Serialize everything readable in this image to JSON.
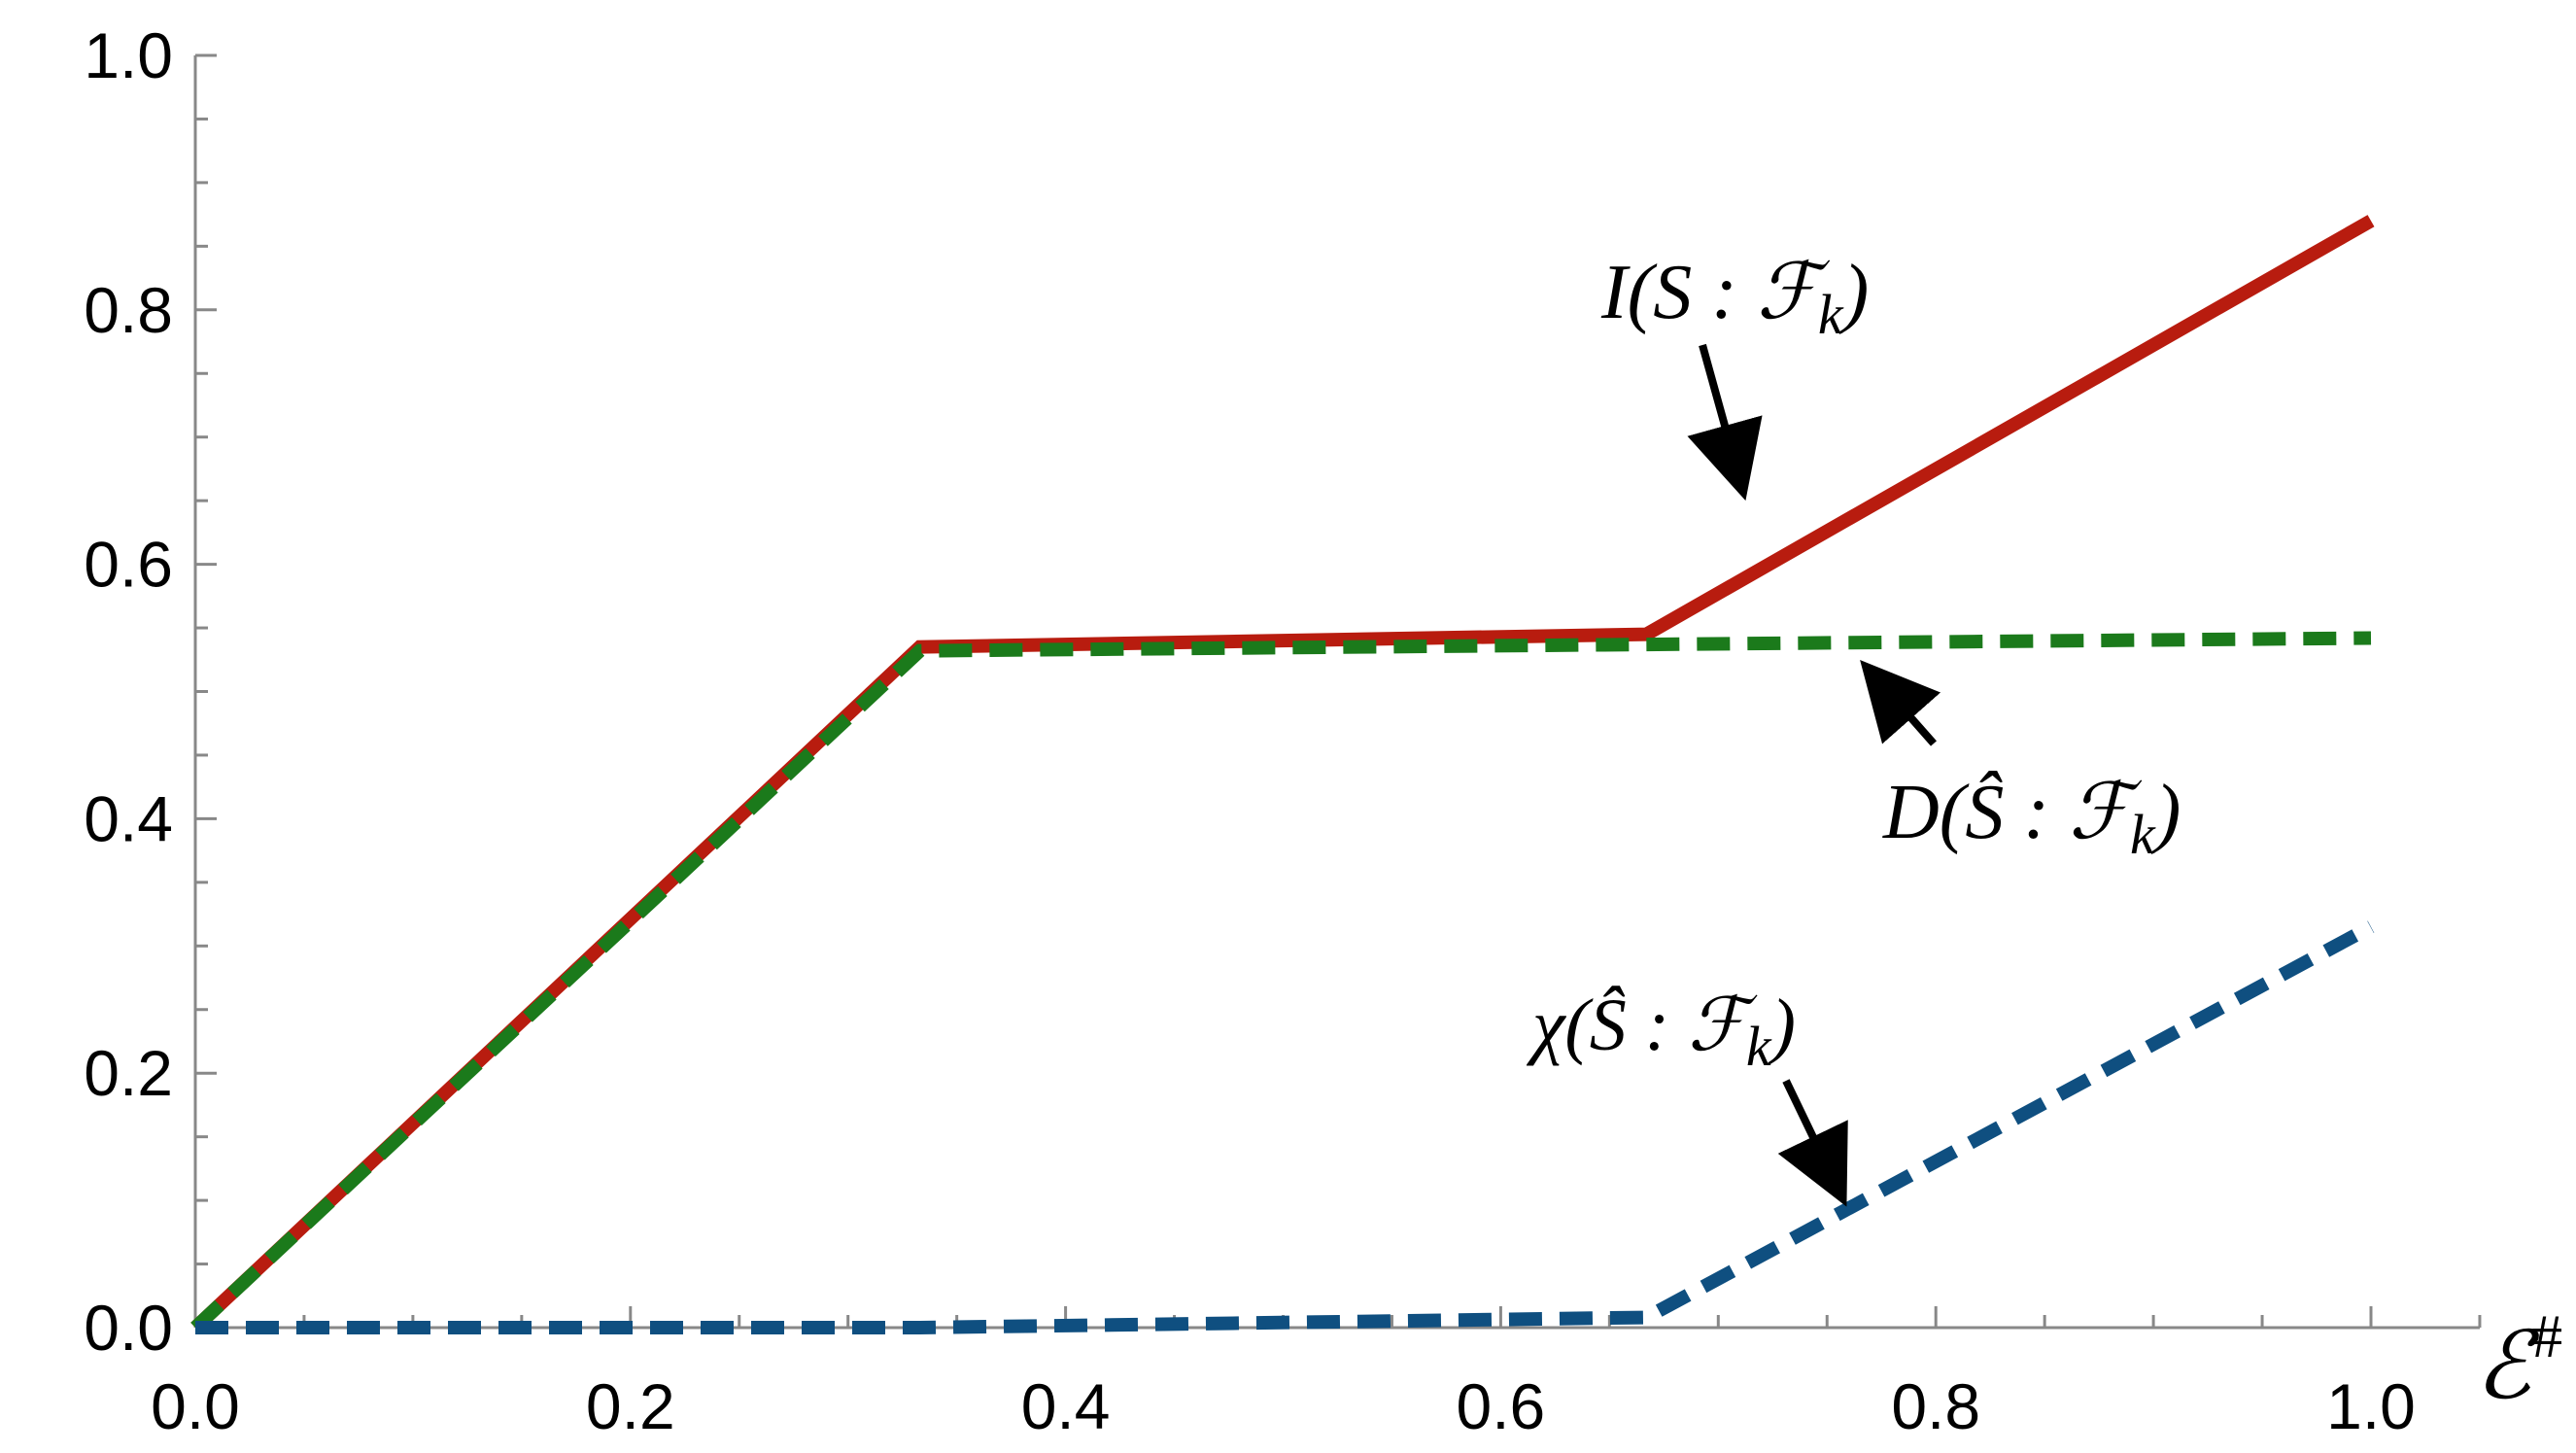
{
  "chart_data": {
    "type": "line",
    "title": "",
    "xlabel": "ℰ#",
    "ylabel": "",
    "xlim": [
      0,
      1.05
    ],
    "ylim": [
      0,
      1.0
    ],
    "x_ticks": [
      0.0,
      0.2,
      0.4,
      0.6,
      0.8,
      1.0
    ],
    "x_tick_labels": [
      "0.0",
      "0.2",
      "0.4",
      "0.6",
      "0.8",
      "1.0"
    ],
    "y_ticks": [
      0.0,
      0.2,
      0.4,
      0.6,
      0.8,
      1.0
    ],
    "y_tick_labels": [
      "0.0",
      "0.2",
      "0.4",
      "0.6",
      "0.8",
      "1.0"
    ],
    "grid": false,
    "series": [
      {
        "name": "I(S : ℱk)",
        "style": "solid",
        "color": "#b81c0f",
        "x": [
          0.0,
          0.333,
          0.667,
          1.0
        ],
        "y": [
          0.0,
          0.535,
          0.545,
          0.87
        ]
      },
      {
        "name": "D(Ŝ : ℱk)",
        "style": "dashed",
        "color": "#1b7a1b",
        "x": [
          0.0,
          0.333,
          0.667,
          1.0
        ],
        "y": [
          0.0,
          0.532,
          0.537,
          0.542
        ]
      },
      {
        "name": "χ(Ŝ : ℱk)",
        "style": "dashed",
        "color": "#0f4f80",
        "x": [
          0.0,
          0.333,
          0.667,
          1.0
        ],
        "y": [
          0.0,
          0.0,
          0.008,
          0.315
        ]
      }
    ],
    "annotations": [
      {
        "label_parts": [
          "I(S : ℱ",
          "k",
          ")"
        ],
        "series": 0
      },
      {
        "label_parts": [
          "D(Ŝ : ℱ",
          "k",
          ")"
        ],
        "series": 1
      },
      {
        "label_parts": [
          "χ(Ŝ : ℱ",
          "k",
          ")"
        ],
        "series": 2
      }
    ]
  }
}
